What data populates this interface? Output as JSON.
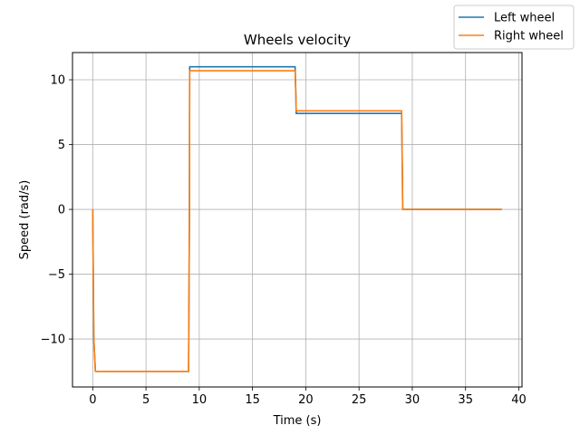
{
  "chart_data": {
    "type": "line",
    "title": "Wheels velocity",
    "xlabel": "Time (s)",
    "ylabel": "Speed (rad/s)",
    "xlim": [
      -1.9,
      40.3
    ],
    "ylim": [
      -13.7,
      12.1
    ],
    "xticks": [
      0,
      5,
      10,
      15,
      20,
      25,
      30,
      35,
      40
    ],
    "xtick_labels": [
      "0",
      "5",
      "10",
      "15",
      "20",
      "25",
      "30",
      "35",
      "40"
    ],
    "yticks": [
      -10,
      -5,
      0,
      5,
      10
    ],
    "ytick_labels": [
      "−10",
      "−5",
      "0",
      "5",
      "10"
    ],
    "grid": true,
    "legend_position": "top-right",
    "series": [
      {
        "name": "Left wheel",
        "color": "#1f77b4",
        "x": [
          0.0,
          0.1,
          0.25,
          9.0,
          9.08,
          9.1,
          19.0,
          19.08,
          19.1,
          29.0,
          29.08,
          29.1,
          38.4
        ],
        "y": [
          0.0,
          -10.0,
          -12.5,
          -12.5,
          0.0,
          11.0,
          11.0,
          8.5,
          7.4,
          7.4,
          2.0,
          0.0,
          0.0
        ]
      },
      {
        "name": "Right wheel",
        "color": "#ff7f0e",
        "x": [
          0.0,
          0.1,
          0.25,
          9.0,
          9.08,
          9.1,
          19.0,
          19.08,
          19.1,
          29.0,
          29.08,
          29.1,
          38.4
        ],
        "y": [
          0.0,
          -10.0,
          -12.5,
          -12.5,
          0.0,
          10.7,
          10.7,
          8.5,
          7.6,
          7.6,
          2.0,
          0.0,
          0.0
        ]
      }
    ]
  }
}
